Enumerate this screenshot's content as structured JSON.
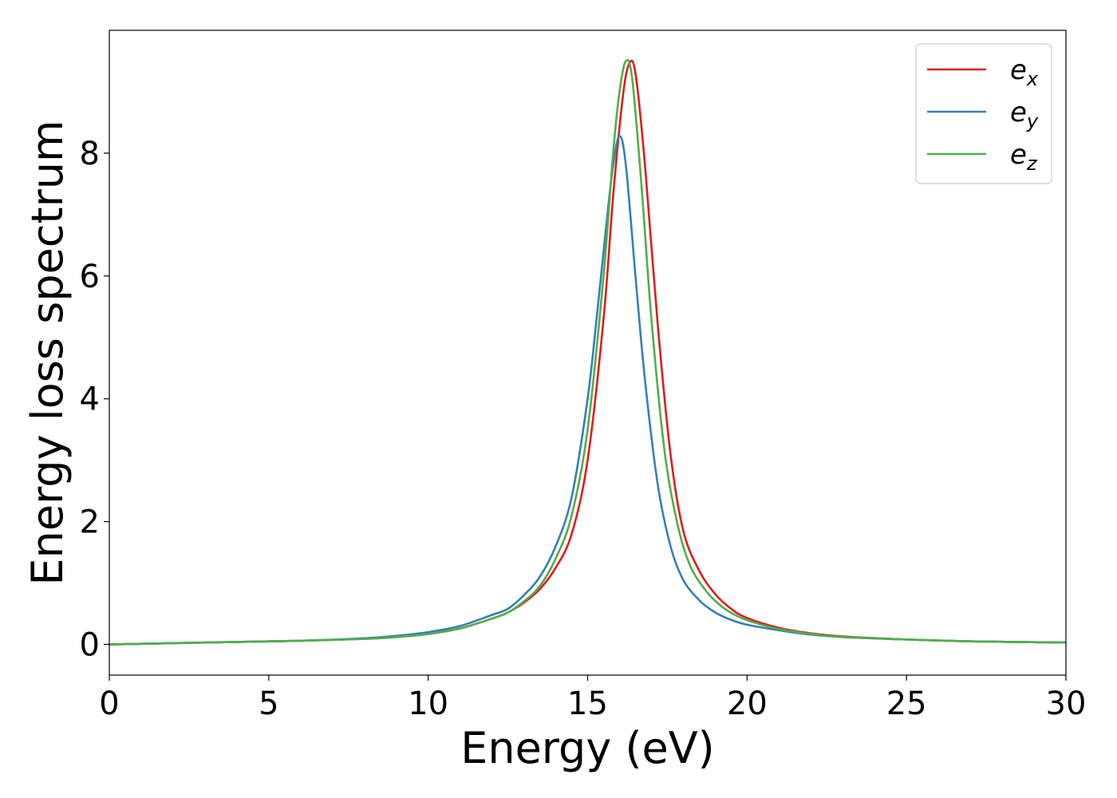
{
  "chart_data": {
    "type": "line",
    "title": "",
    "xlabel": "Energy (eV)",
    "ylabel": "Energy loss spectrum",
    "xlim": [
      0,
      30
    ],
    "ylim": [
      -0.5,
      10
    ],
    "xticks": [
      0,
      5,
      10,
      15,
      20,
      25,
      30
    ],
    "xtick_labels": [
      "0",
      "5",
      "10",
      "15",
      "20",
      "25",
      "30"
    ],
    "yticks": [
      0,
      2,
      4,
      6,
      8
    ],
    "ytick_labels": [
      "0",
      "2",
      "4",
      "6",
      "8"
    ],
    "grid": false,
    "legend_position": "top-right",
    "series": [
      {
        "name": "e_x",
        "legend_base": "e",
        "legend_sub": "x",
        "color": "#e41a1c",
        "x": [
          0,
          2,
          4,
          6,
          8,
          9,
          10,
          11,
          12,
          12.5,
          13,
          13.5,
          14,
          14.5,
          15,
          15.5,
          15.8,
          16.1,
          16.3,
          16.5,
          16.8,
          17.2,
          17.6,
          18,
          18.5,
          19,
          19.5,
          20,
          21,
          22,
          23,
          25,
          27,
          30
        ],
        "y": [
          0,
          0.02,
          0.04,
          0.06,
          0.09,
          0.12,
          0.17,
          0.26,
          0.42,
          0.52,
          0.68,
          0.9,
          1.25,
          1.8,
          3.0,
          5.3,
          7.3,
          8.9,
          9.45,
          9.3,
          7.8,
          5.2,
          3.1,
          1.85,
          1.2,
          0.82,
          0.58,
          0.43,
          0.27,
          0.18,
          0.13,
          0.08,
          0.05,
          0.03
        ]
      },
      {
        "name": "e_y",
        "legend_base": "e",
        "legend_sub": "y",
        "color": "#377eb8",
        "x": [
          0,
          2,
          4,
          6,
          8,
          9,
          10,
          11,
          12,
          12.5,
          13,
          13.5,
          14,
          14.5,
          15,
          15.3,
          15.6,
          15.8,
          16.0,
          16.2,
          16.5,
          16.8,
          17.2,
          17.6,
          18,
          18.5,
          19,
          19.5,
          20,
          21,
          22,
          23,
          25,
          27,
          30
        ],
        "y": [
          0,
          0.02,
          0.04,
          0.06,
          0.1,
          0.14,
          0.2,
          0.3,
          0.48,
          0.58,
          0.8,
          1.1,
          1.6,
          2.4,
          4.0,
          5.4,
          6.9,
          7.8,
          8.28,
          7.8,
          6.0,
          4.3,
          2.6,
          1.6,
          1.05,
          0.72,
          0.52,
          0.4,
          0.32,
          0.23,
          0.16,
          0.12,
          0.08,
          0.05,
          0.03
        ]
      },
      {
        "name": "e_z",
        "legend_base": "e",
        "legend_sub": "z",
        "color": "#4daf4a",
        "x": [
          0,
          2,
          4,
          6,
          8,
          9,
          10,
          11,
          12,
          12.5,
          13,
          13.5,
          14,
          14.5,
          15,
          15.5,
          15.8,
          16.0,
          16.2,
          16.4,
          16.7,
          17.0,
          17.4,
          17.8,
          18.2,
          18.7,
          19.2,
          19.7,
          20.2,
          21,
          22,
          23,
          25,
          27,
          30
        ],
        "y": [
          0,
          0.02,
          0.04,
          0.06,
          0.09,
          0.12,
          0.17,
          0.26,
          0.42,
          0.52,
          0.7,
          0.95,
          1.4,
          2.1,
          3.5,
          6.0,
          8.0,
          9.0,
          9.5,
          9.2,
          7.4,
          5.3,
          3.2,
          2.0,
          1.3,
          0.88,
          0.62,
          0.46,
          0.36,
          0.25,
          0.17,
          0.12,
          0.08,
          0.05,
          0.03
        ]
      }
    ]
  }
}
